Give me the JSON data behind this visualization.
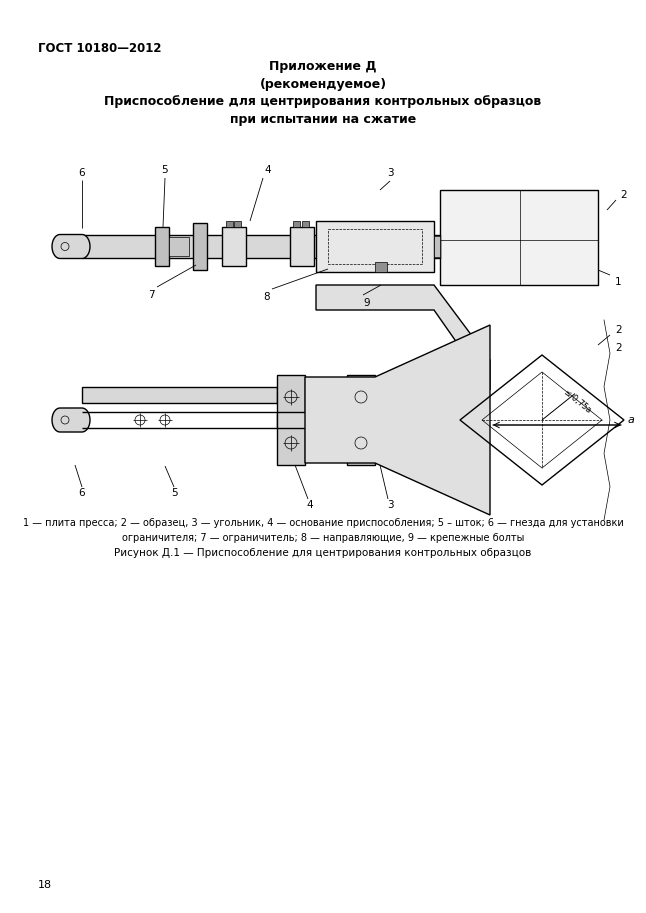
{
  "page_title_top_left": "ГОСТ 10180—2012",
  "appendix_title": "Приложение Д\n(рекомендуемое)",
  "figure_title": "Приспособление для центрирования контрольных образцов\nпри испытании на сжатие",
  "caption_legend": "1 — плита пресса; 2 — образец, 3 — угольник, 4 — основание приспособления; 5 – шток; 6 — гнезда для установки\nограничителя; 7 — ограничитель; 8 — направляющие, 9 — крепежные болты",
  "figure_caption": "Рисунок Д.1 — Приспособление для центрирования контрольных образцов",
  "page_number": "18",
  "bg_color": "#ffffff",
  "line_color": "#000000",
  "text_color": "#000000",
  "font_size_header": 8.5,
  "font_size_title": 9,
  "font_size_labels": 7.5,
  "font_size_caption": 7.0,
  "font_size_page": 8
}
